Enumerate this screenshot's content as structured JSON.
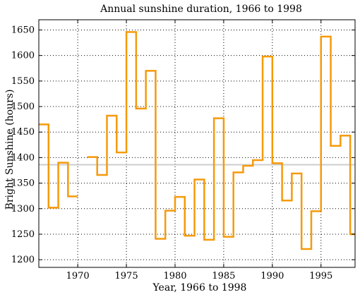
{
  "chart_data": {
    "type": "line",
    "step": "post",
    "title": "Annual sunshine duration, 1966 to 1998",
    "xlabel": "Year, 1966 to 1998",
    "ylabel": "Bright Sunshine (hours)",
    "xlim": [
      1966,
      1998.5
    ],
    "ylim": [
      1185,
      1670
    ],
    "xticks": [
      1970,
      1975,
      1980,
      1985,
      1990,
      1995
    ],
    "yticks": [
      1200,
      1250,
      1300,
      1350,
      1400,
      1450,
      1500,
      1550,
      1600,
      1650
    ],
    "grid": true,
    "reference_line": {
      "y": 1386,
      "color": "#cccccc"
    },
    "line_color": "#f59a0b",
    "series": [
      {
        "x": [
          1966,
          1967,
          1968,
          1969,
          1970,
          1971,
          1972,
          1973,
          1974,
          1975,
          1976,
          1977,
          1978,
          1979,
          1980,
          1981,
          1982,
          1983,
          1984,
          1985,
          1986,
          1987,
          1988,
          1989,
          1990,
          1991,
          1992,
          1993,
          1994,
          1995,
          1996,
          1997,
          1998
        ],
        "values": [
          1465,
          1302,
          1390,
          1324,
          null,
          1401,
          1366,
          1482,
          1410,
          1646,
          1496,
          1570,
          1241,
          1296,
          1323,
          1247,
          1357,
          1239,
          1477,
          1245,
          1371,
          1384,
          1395,
          1598,
          1389,
          1316,
          1369,
          1221,
          1295,
          1637,
          1423,
          1443,
          1250
        ]
      }
    ]
  }
}
